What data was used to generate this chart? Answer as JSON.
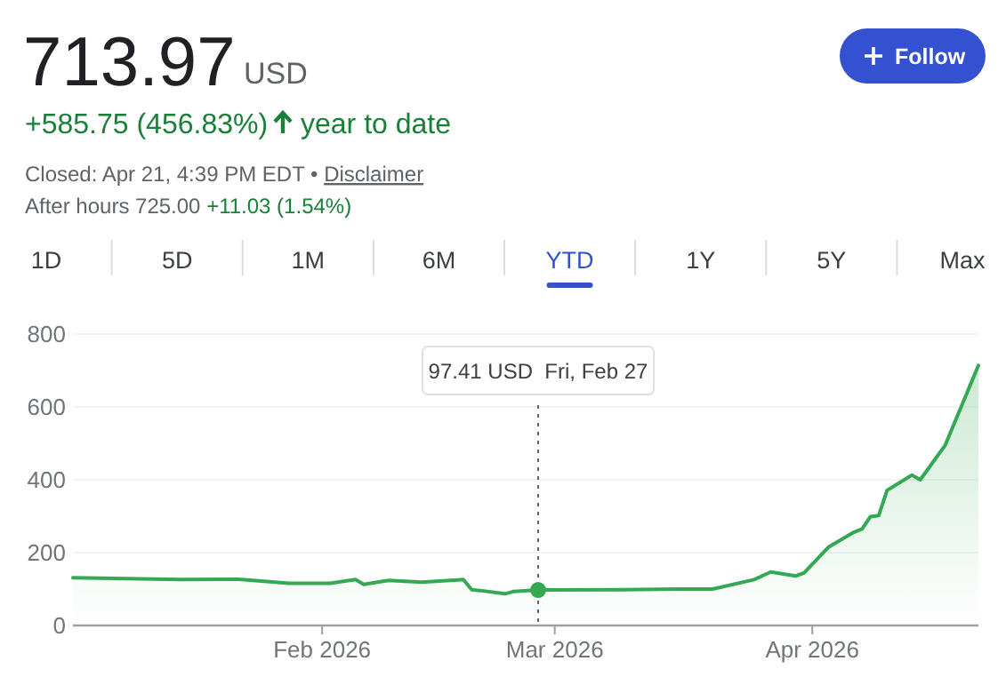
{
  "chart_data": {
    "type": "area",
    "title": "713.97",
    "annotations": [
      "USD",
      "+585.75 (456.83%)",
      "year to date",
      "Closed: Apr 21, 4:39 PM EDT • ",
      "Disclaimer",
      "After hours 725.00 ",
      "+11.03 (1.54%)",
      "Follow",
      "1D",
      "5D",
      "1M",
      "6M",
      "YTD",
      "1Y",
      "5Y",
      "Max",
      "97.41 USD  Fri, Feb 27"
    ],
    "x": [
      "2026-01-02",
      "2026-01-15",
      "2026-01-22",
      "2026-01-28",
      "2026-02-02",
      "2026-02-05",
      "2026-02-06",
      "2026-02-09",
      "2026-02-13",
      "2026-02-18",
      "2026-02-19",
      "2026-02-20",
      "2026-02-23",
      "2026-02-24",
      "2026-02-27",
      "2026-03-09",
      "2026-03-16",
      "2026-03-20",
      "2026-03-25",
      "2026-03-27",
      "2026-03-30",
      "2026-03-31",
      "2026-04-03",
      "2026-04-06",
      "2026-04-07",
      "2026-04-08",
      "2026-04-09",
      "2026-04-10",
      "2026-04-13",
      "2026-04-14",
      "2026-04-17",
      "2026-04-21"
    ],
    "series": [
      {
        "color": "#34a853",
        "values": [
          131,
          126,
          127,
          116,
          116,
          126,
          113,
          124,
          119,
          126,
          98,
          96,
          87,
          93,
          97.41,
          98,
          100,
          100,
          126,
          147,
          136,
          144,
          216,
          256,
          265,
          299,
          302,
          371,
          413,
          400,
          495,
          713.97
        ]
      }
    ],
    "xlim": [
      "2026-01-02",
      "2026-04-21"
    ],
    "xticks": [
      {
        "value": "2026-02-01",
        "label": "Feb 2026"
      },
      {
        "value": "2026-03-01",
        "label": "Mar 2026"
      },
      {
        "value": "2026-04-01",
        "label": "Apr 2026"
      }
    ],
    "ylim": [
      0,
      800
    ],
    "yticks": [
      0,
      200,
      400,
      600,
      800
    ],
    "grid": "y",
    "ref_lines": [
      {
        "axis": "x",
        "value": "2026-02-27",
        "line_style": "dotted"
      }
    ],
    "marker": "none",
    "line_style": "solid"
  }
}
